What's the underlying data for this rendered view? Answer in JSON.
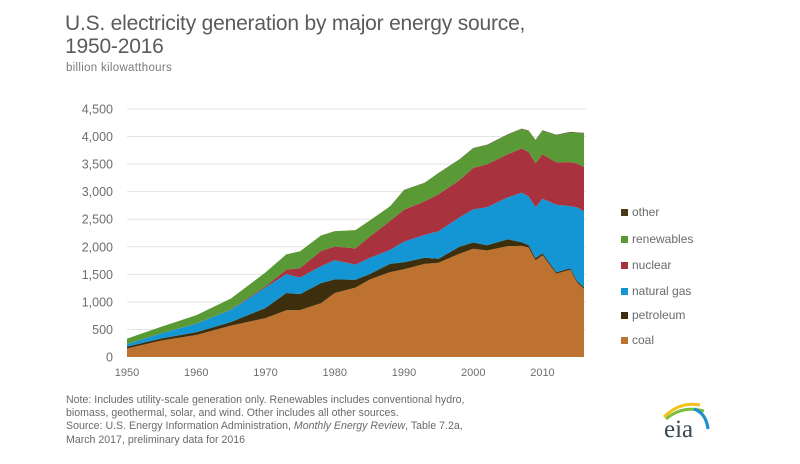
{
  "header": {
    "title_line1": "U.S. electricity generation by major energy source,",
    "title_line2": "1950-2016",
    "unit": "billion kilowatthours"
  },
  "notes": {
    "line1": "Note: Includes utility-scale generation only. Renewables includes conventional hydro,",
    "line2": "biomass, geothermal, solar, and wind. Other includes all other sources.",
    "line3_prefix": "Source: U.S. Energy Information Administration, ",
    "line3_italic": "Monthly Energy Review",
    "line3_suffix": ", Table 7.2a,",
    "line4": "March 2017, preliminary data for 2016"
  },
  "logo": {
    "text": "eia",
    "icon": "eia-logo-icon"
  },
  "chart_data": {
    "type": "area",
    "stacked": true,
    "title": "U.S. electricity generation by major energy source, 1950-2016",
    "xlabel": "",
    "ylabel": "billion kilowatthours",
    "xlim": [
      1950,
      2016
    ],
    "ylim": [
      0,
      4500
    ],
    "grid": true,
    "legend_position": "right",
    "x_ticks": [
      1950,
      1960,
      1970,
      1980,
      1990,
      2000,
      2010
    ],
    "x_tick_labels": [
      "1950",
      "1960",
      "1970",
      "1980",
      "1990",
      "2000",
      "2010"
    ],
    "y_ticks": [
      0,
      500,
      1000,
      1500,
      2000,
      2500,
      3000,
      3500,
      4000,
      4500
    ],
    "y_tick_labels": [
      "0",
      "500",
      "1,000",
      "1,500",
      "2,000",
      "2,500",
      "3,000",
      "3,500",
      "4,000",
      "4,500"
    ],
    "x": [
      1950,
      1955,
      1960,
      1965,
      1970,
      1973,
      1975,
      1978,
      1980,
      1983,
      1985,
      1988,
      1990,
      1993,
      1995,
      1998,
      2000,
      2002,
      2005,
      2007,
      2008,
      2009,
      2010,
      2012,
      2014,
      2015,
      2016
    ],
    "series": [
      {
        "name": "coal",
        "color": "#bd7230",
        "values": [
          155,
          300,
          400,
          570,
          705,
          848,
          853,
          976,
          1162,
          1259,
          1402,
          1541,
          1594,
          1690,
          1709,
          1874,
          1966,
          1933,
          2013,
          2016,
          1986,
          1756,
          1847,
          1514,
          1582,
          1352,
          1240
        ]
      },
      {
        "name": "petroleum",
        "color": "#3d2f0e",
        "values": [
          34,
          37,
          48,
          65,
          184,
          314,
          289,
          365,
          246,
          144,
          100,
          149,
          127,
          112,
          75,
          128,
          111,
          95,
          122,
          66,
          46,
          39,
          37,
          23,
          30,
          28,
          24
        ]
      },
      {
        "name": "natural gas",
        "color": "#1496d4",
        "values": [
          45,
          95,
          158,
          222,
          373,
          341,
          300,
          305,
          346,
          274,
          292,
          253,
          373,
          414,
          496,
          531,
          601,
          691,
          761,
          897,
          883,
          921,
          988,
          1226,
          1127,
          1334,
          1380
        ]
      },
      {
        "name": "nuclear",
        "color": "#a8333f",
        "values": [
          0,
          0,
          1,
          4,
          22,
          83,
          173,
          276,
          251,
          294,
          384,
          527,
          577,
          610,
          673,
          673,
          754,
          780,
          782,
          806,
          806,
          799,
          807,
          769,
          797,
          797,
          805
        ]
      },
      {
        "name": "renewables",
        "color": "#5a9a36",
        "values": [
          100,
          120,
          150,
          200,
          251,
          275,
          303,
          283,
          279,
          332,
          293,
          265,
          357,
          334,
          384,
          379,
          356,
          343,
          357,
          352,
          380,
          417,
          427,
          494,
          540,
          557,
          609
        ]
      },
      {
        "name": "other",
        "color": "#4a3b17",
        "values": [
          0,
          0,
          0,
          0,
          0,
          0,
          0,
          0,
          0,
          0,
          0,
          0,
          4,
          4,
          4,
          5,
          5,
          8,
          8,
          8,
          8,
          8,
          8,
          8,
          8,
          8,
          8
        ]
      }
    ],
    "legend_order": [
      "other",
      "renewables",
      "nuclear",
      "natural gas",
      "petroleum",
      "coal"
    ]
  }
}
